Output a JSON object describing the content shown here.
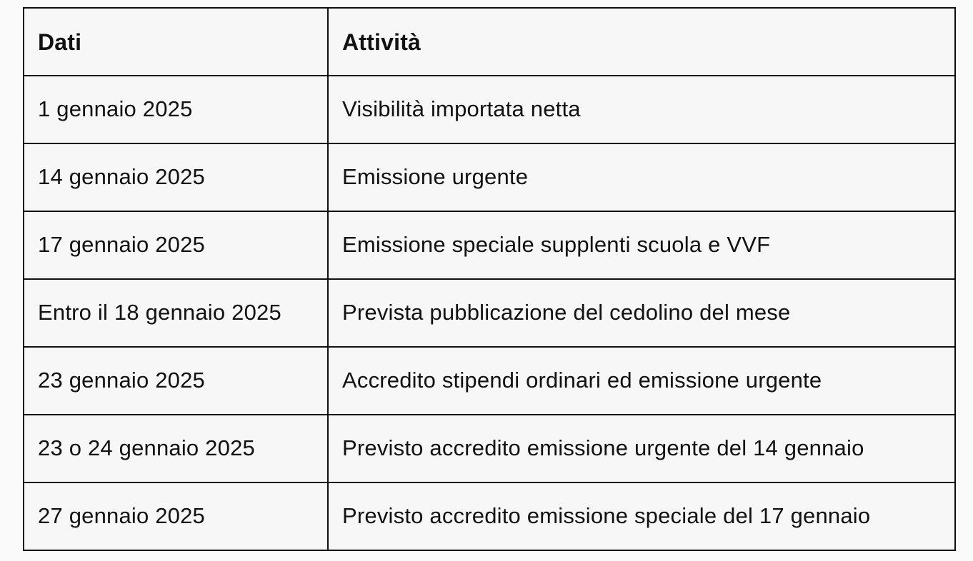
{
  "table": {
    "columns": [
      {
        "label": "Dati"
      },
      {
        "label": "Attività"
      }
    ],
    "rows": [
      {
        "date": "1 gennaio 2025",
        "activity": "Visibilità importata netta"
      },
      {
        "date": "14 gennaio 2025",
        "activity": "Emissione urgente"
      },
      {
        "date": "17 gennaio 2025",
        "activity": "Emissione speciale supplenti scuola e VVF"
      },
      {
        "date": "Entro il 18 gennaio 2025",
        "activity": "Prevista pubblicazione del cedolino del mese"
      },
      {
        "date": "23 gennaio 2025",
        "activity": "Accredito stipendi ordinari ed emissione urgente"
      },
      {
        "date": "23 o 24 gennaio 2025",
        "activity": "Previsto accredito emissione urgente del 14 gennaio"
      },
      {
        "date": "27 gennaio 2025",
        "activity": "Previsto accredito emissione speciale del 17 gennaio"
      }
    ],
    "colors": {
      "border": "#111111",
      "cell_background": "#f7f7f7",
      "page_background": "#fafafa",
      "text": "#111111"
    }
  }
}
